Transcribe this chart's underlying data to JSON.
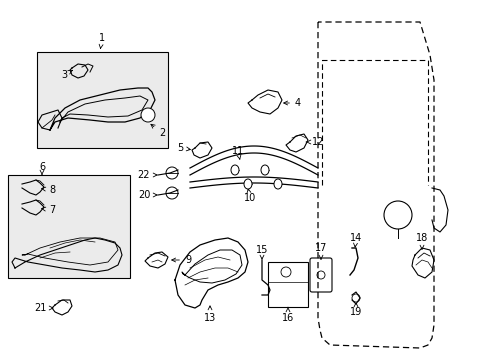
{
  "bg_color": "#ffffff",
  "fig_width": 4.89,
  "fig_height": 3.6,
  "dpi": 100,
  "line_color": "#000000",
  "box_fill": "#ebebeb",
  "label_fontsize": 7.0
}
